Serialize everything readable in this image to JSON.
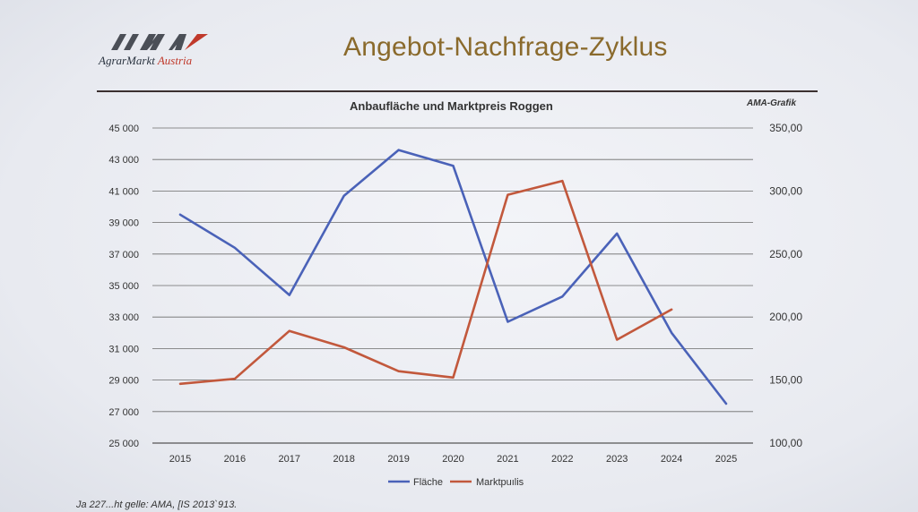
{
  "logo": {
    "brand": "AMA",
    "name_part1": "AgrarMarkt",
    "name_part2": "Austria",
    "accent_color": "#c0392b"
  },
  "slide_title": "Angebot-Nachfrage-Zyklus",
  "source_text": "Ja 227...ht gelle: AMA, [IS 2013`913.",
  "chart_data": {
    "type": "line",
    "title": "Anbaufläche und Marktpreis Roggen",
    "credit": "AMA-Grafik",
    "categories": [
      "2015",
      "2016",
      "2017",
      "2018",
      "2019",
      "2020",
      "2021",
      "2022",
      "2023",
      "2024",
      "2025"
    ],
    "y_left": {
      "min": 25000,
      "max": 45000,
      "step": 2000,
      "ticks": [
        "25 000",
        "27 000",
        "29 000",
        "31 000",
        "33 000",
        "35 000",
        "37 000",
        "39 000",
        "41 000",
        "43 000",
        "45 000"
      ]
    },
    "y_right": {
      "min": 100,
      "max": 350,
      "step": 50,
      "ticks": [
        "100,00",
        "150,00",
        "200,00",
        "250,00",
        "300,00",
        "350,00"
      ]
    },
    "grid": true,
    "legend_position": "bottom",
    "series": [
      {
        "name": "Fläche",
        "axis": "left",
        "color": "#4a62b8",
        "values": [
          39500,
          37400,
          34400,
          40700,
          43600,
          42600,
          32700,
          34300,
          38300,
          32000,
          27500
        ]
      },
      {
        "name": "Marktpuılis",
        "axis": "right",
        "color": "#c2583c",
        "values": [
          147,
          151,
          189,
          176,
          157,
          152,
          297,
          308,
          182,
          206,
          null
        ]
      }
    ]
  }
}
